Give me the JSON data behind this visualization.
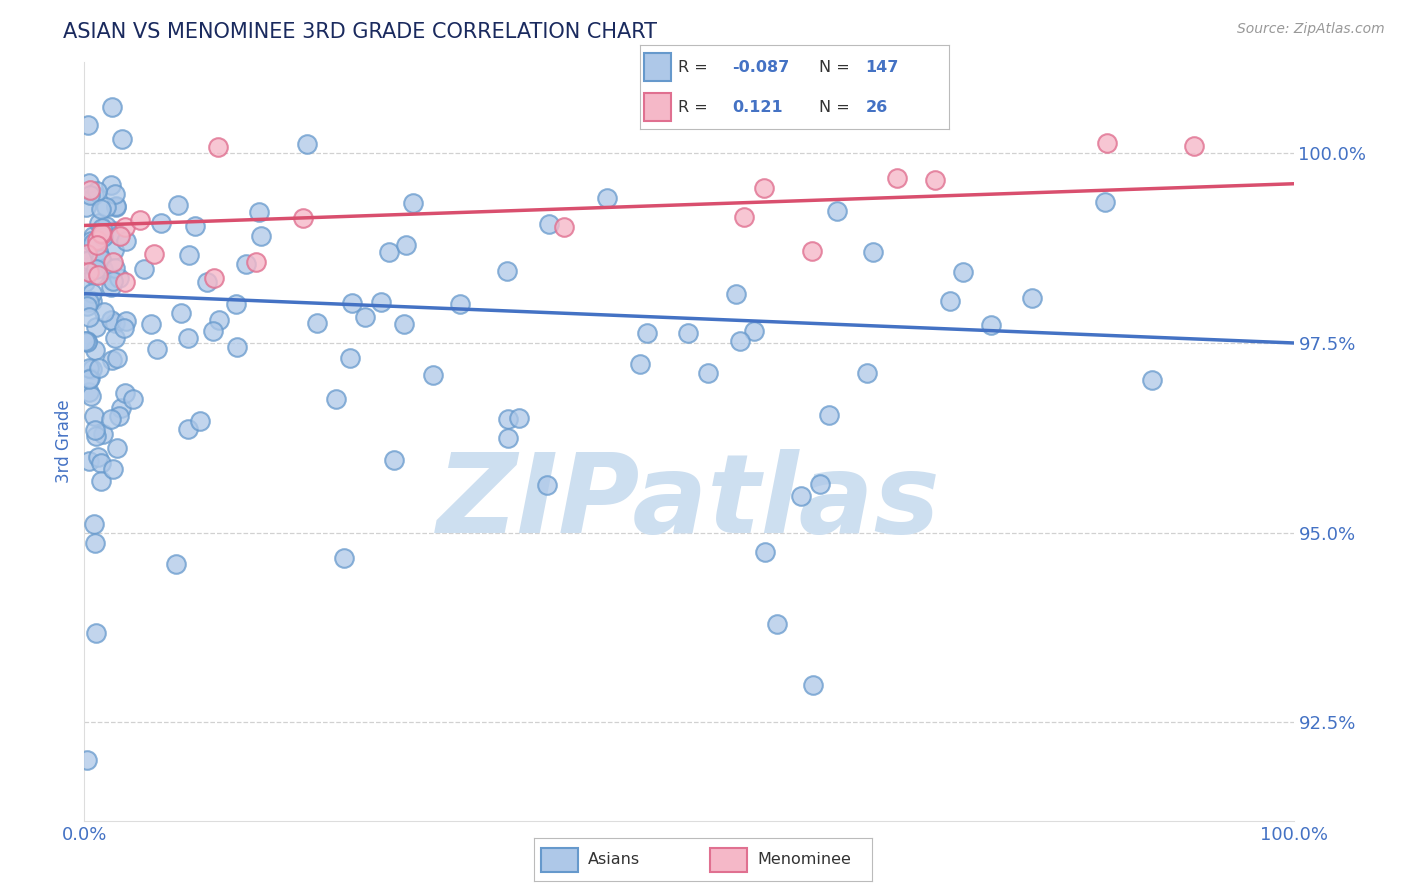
{
  "title": "ASIAN VS MENOMINEE 3RD GRADE CORRELATION CHART",
  "source_text": "Source: ZipAtlas.com",
  "ylabel": "3rd Grade",
  "y_ticks": [
    92.5,
    95.0,
    97.5,
    100.0
  ],
  "y_tick_labels": [
    "92.5%",
    "95.0%",
    "97.5%",
    "100.0%"
  ],
  "x_lim": [
    0.0,
    100.0
  ],
  "y_lim": [
    91.2,
    101.2
  ],
  "asian_R": -0.087,
  "asian_N": 147,
  "menominee_R": 0.121,
  "menominee_N": 26,
  "asian_color": "#aec8e8",
  "asian_edge_color": "#6699cc",
  "menominee_color": "#f5b8c8",
  "menominee_edge_color": "#e07090",
  "trendline_asian_color": "#4472c4",
  "trendline_menominee_color": "#d94f6e",
  "watermark_color": "#cddff0",
  "background_color": "#ffffff",
  "grid_color": "#cccccc",
  "title_color": "#1a2a5e",
  "axis_label_color": "#4472c4",
  "asian_trendline_y0": 98.15,
  "asian_trendline_y1": 97.5,
  "menominee_trendline_y0": 99.05,
  "menominee_trendline_y1": 99.6
}
